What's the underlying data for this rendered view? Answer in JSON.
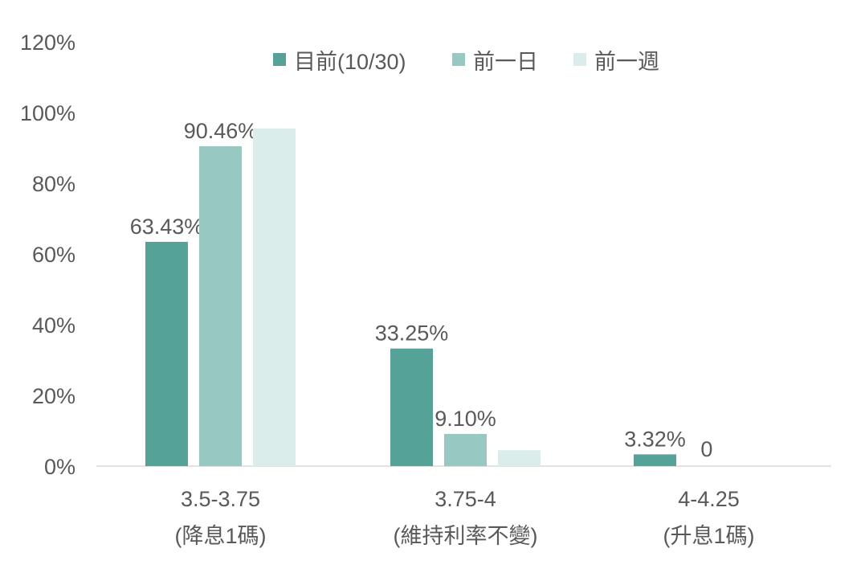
{
  "chart_data": {
    "type": "bar",
    "categories": [
      [
        "3.5-3.75",
        "(降息1碼)"
      ],
      [
        "3.75-4",
        "(維持利率不變)"
      ],
      [
        "4-4.25",
        "(升息1碼)"
      ]
    ],
    "series": [
      {
        "name": "目前(10/30)",
        "color": "#55a398",
        "values": [
          63.43,
          33.25,
          3.32
        ],
        "labels": [
          "63.43%",
          "33.25%",
          "3.32%"
        ]
      },
      {
        "name": "前一日",
        "color": "#98c8c2",
        "values": [
          90.46,
          9.1,
          0
        ],
        "labels": [
          "90.46%",
          "9.10%",
          "0"
        ]
      },
      {
        "name": "前一週",
        "color": "#dbedea",
        "values": [
          95.5,
          4.5,
          0
        ],
        "labels": [
          "",
          "",
          ""
        ]
      }
    ],
    "yticks": [
      "0%",
      "20%",
      "40%",
      "60%",
      "80%",
      "100%",
      "120%"
    ],
    "ylim": [
      0,
      120
    ],
    "legend_position": "top",
    "grid": false,
    "axis_color": "#d9d9d9"
  }
}
